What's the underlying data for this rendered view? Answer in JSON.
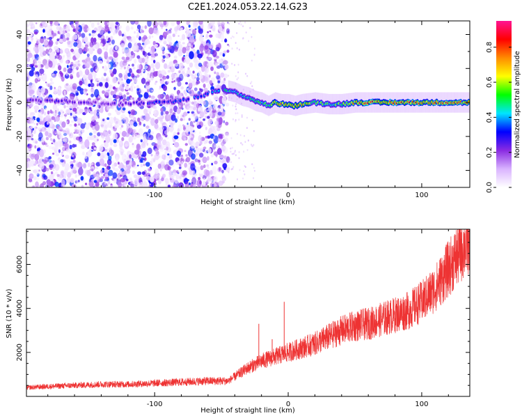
{
  "chart_data": [
    {
      "type": "heatmap",
      "title": "C2E1.2024.053.22.14.G23",
      "xlabel": "Height of straight line (km)",
      "ylabel": "Frequency (Hz)",
      "xlim": [
        -196,
        136
      ],
      "ylim": [
        -50,
        48
      ],
      "x_ticks": [
        -100,
        0,
        100
      ],
      "y_ticks": [
        -40,
        -20,
        0,
        20,
        40
      ],
      "x_tick_labels": [
        "-100",
        "0",
        "100"
      ],
      "y_tick_labels": [
        "-40",
        "-20",
        "0",
        "20",
        "40"
      ],
      "colorbar": {
        "label": "Normalized spectral amplitude",
        "range": [
          0,
          0.95
        ],
        "ticks": [
          0,
          0.2,
          0.4,
          0.6,
          0.8
        ],
        "tick_labels": [
          "0.0",
          "0.2",
          "0.4",
          "0.6",
          "0.8"
        ],
        "colors": [
          "#ffffff",
          "#d9b3ff",
          "#8a2be2",
          "#0000ff",
          "#00e5ff",
          "#00ff00",
          "#ffff00",
          "#ff8c00",
          "#ff0000",
          "#ff1493"
        ]
      },
      "noise_region_x": [
        -196,
        -45
      ],
      "sparse_region_x": [
        -45,
        -25
      ],
      "ridge": {
        "x": [
          -195,
          -170,
          -150,
          -125,
          -100,
          -80,
          -60,
          -50,
          -45,
          -40,
          -35,
          -30,
          -25,
          -20,
          -15,
          -10,
          -5,
          0,
          5,
          10,
          20,
          30,
          40,
          50,
          60,
          80,
          100,
          120,
          135
        ],
        "y": [
          1,
          1,
          0,
          -1,
          0,
          1,
          5,
          8,
          7,
          6,
          4,
          3,
          1,
          0,
          -2,
          0,
          -1,
          -1,
          -2,
          -1,
          0,
          -1,
          -1,
          0,
          0,
          0,
          0,
          0,
          0
        ],
        "amplitude": [
          0.3,
          0.3,
          0.25,
          0.3,
          0.35,
          0.35,
          0.4,
          0.45,
          0.5,
          0.5,
          0.45,
          0.5,
          0.5,
          0.55,
          0.55,
          0.7,
          0.8,
          0.8,
          0.7,
          0.75,
          0.6,
          0.55,
          0.6,
          0.8,
          0.85,
          0.85,
          0.85,
          0.8,
          0.75
        ]
      },
      "grid": false
    },
    {
      "type": "line",
      "xlabel": "Height of straight line (km)",
      "ylabel": "SNR (10 * v/v)",
      "xlim": [
        -196,
        136
      ],
      "ylim": [
        0,
        7600
      ],
      "x_ticks": [
        -100,
        0,
        100
      ],
      "y_ticks": [
        2000,
        4000,
        6000
      ],
      "x_tick_labels": [
        "-100",
        "0",
        "100"
      ],
      "y_tick_labels": [
        "2000",
        "4000",
        "6000"
      ],
      "color": "#ee3333",
      "grid": false,
      "series": [
        {
          "x": [
            -196,
            -180,
            -160,
            -140,
            -120,
            -100,
            -80,
            -60,
            -45,
            -40,
            -30,
            -20,
            -10,
            0,
            10,
            20,
            30,
            40,
            50,
            60,
            70,
            80,
            90,
            100,
            110,
            120,
            130,
            136
          ],
          "y": [
            400,
            450,
            500,
            550,
            550,
            600,
            650,
            700,
            700,
            900,
            1300,
            1600,
            1800,
            2000,
            2200,
            2400,
            2700,
            3000,
            3200,
            3300,
            3500,
            3700,
            3900,
            4300,
            4900,
            5800,
            6700,
            7200
          ]
        }
      ],
      "spikes": [
        {
          "x": -22,
          "y": 3300
        },
        {
          "x": -3,
          "y": 4300
        },
        {
          "x": -12,
          "y": 2600
        }
      ]
    }
  ]
}
